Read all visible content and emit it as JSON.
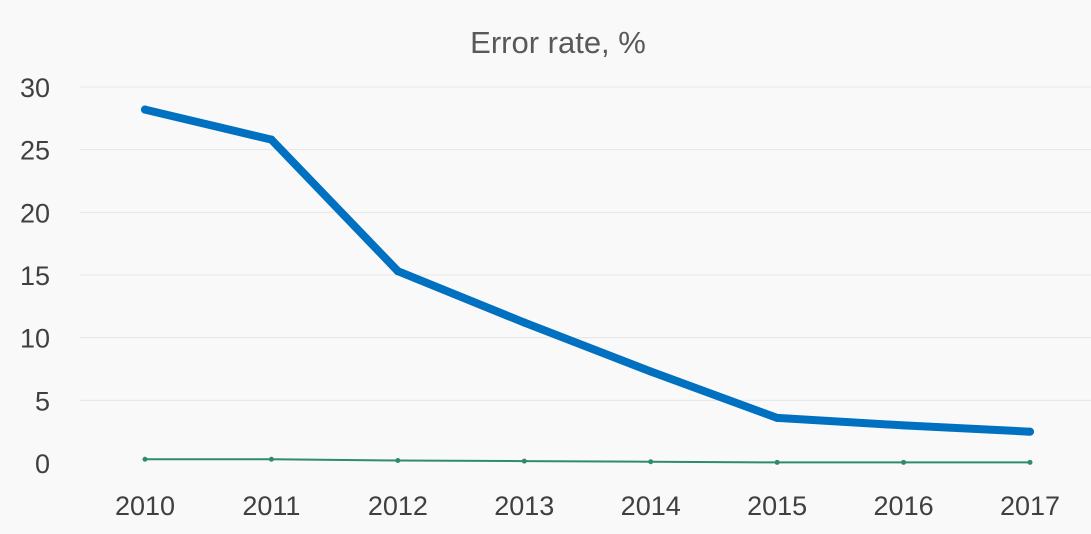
{
  "chart_data": {
    "type": "line",
    "title": "Error rate, %",
    "xlabel": "",
    "ylabel": "",
    "categories": [
      "2010",
      "2011",
      "2012",
      "2013",
      "2014",
      "2015",
      "2016",
      "2017"
    ],
    "ylim": [
      0,
      30
    ],
    "yticks": [
      0,
      5,
      10,
      15,
      20,
      25,
      30
    ],
    "grid": true,
    "legend": "none",
    "series": [
      {
        "color": "#0070c0",
        "values": [
          28.2,
          25.8,
          15.3,
          11.2,
          7.3,
          3.6,
          3.0,
          2.5
        ]
      },
      {
        "color": "#2e8b6e",
        "values": [
          0.3,
          0.3,
          0.2,
          0.15,
          0.1,
          0.05,
          0.05,
          0.05
        ]
      }
    ]
  }
}
